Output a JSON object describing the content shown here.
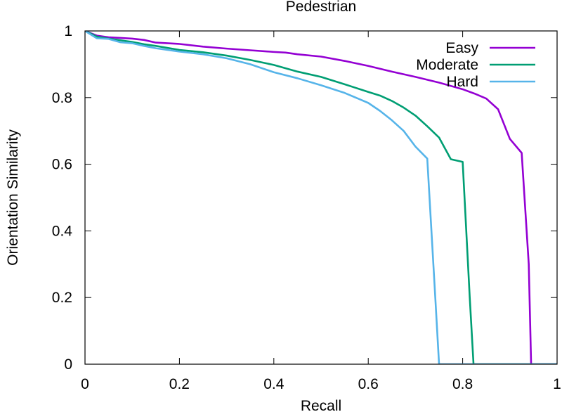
{
  "chart_data": {
    "type": "line",
    "title": "Pedestrian",
    "xlabel": "Recall",
    "ylabel": "Orientation Similarity",
    "xlim": [
      0,
      1
    ],
    "ylim": [
      0,
      1
    ],
    "grid": false,
    "legend_position": "top-right",
    "x_ticks": [
      {
        "value": 0,
        "label": "0"
      },
      {
        "value": 0.2,
        "label": "0.2"
      },
      {
        "value": 0.4,
        "label": "0.4"
      },
      {
        "value": 0.6,
        "label": "0.6"
      },
      {
        "value": 0.8,
        "label": "0.8"
      },
      {
        "value": 1,
        "label": "1"
      }
    ],
    "y_ticks": [
      {
        "value": 0,
        "label": "0"
      },
      {
        "value": 0.2,
        "label": "0.2"
      },
      {
        "value": 0.4,
        "label": "0.4"
      },
      {
        "value": 0.6,
        "label": "0.6"
      },
      {
        "value": 0.8,
        "label": "0.8"
      },
      {
        "value": 1,
        "label": "1"
      }
    ],
    "series": [
      {
        "name": "Easy",
        "color": "#9400d3",
        "x": [
          0,
          0.025,
          0.05,
          0.075,
          0.1,
          0.125,
          0.15,
          0.2,
          0.25,
          0.3,
          0.35,
          0.4,
          0.425,
          0.45,
          0.5,
          0.55,
          0.6,
          0.65,
          0.7,
          0.75,
          0.8,
          0.825,
          0.85,
          0.875,
          0.9,
          0.925,
          0.94,
          0.945,
          1.0
        ],
        "y": [
          1.0,
          0.986,
          0.981,
          0.979,
          0.977,
          0.973,
          0.965,
          0.961,
          0.953,
          0.947,
          0.942,
          0.937,
          0.935,
          0.93,
          0.923,
          0.91,
          0.895,
          0.878,
          0.862,
          0.845,
          0.825,
          0.812,
          0.797,
          0.765,
          0.676,
          0.634,
          0.3,
          0.0,
          0.0
        ]
      },
      {
        "name": "Moderate",
        "color": "#009e73",
        "x": [
          0,
          0.025,
          0.05,
          0.075,
          0.1,
          0.125,
          0.15,
          0.2,
          0.25,
          0.3,
          0.35,
          0.4,
          0.45,
          0.5,
          0.55,
          0.6,
          0.625,
          0.65,
          0.675,
          0.7,
          0.725,
          0.75,
          0.775,
          0.8,
          0.815,
          0.823,
          1.0
        ],
        "y": [
          1.0,
          0.983,
          0.977,
          0.972,
          0.967,
          0.96,
          0.955,
          0.943,
          0.936,
          0.926,
          0.913,
          0.898,
          0.878,
          0.862,
          0.84,
          0.817,
          0.806,
          0.79,
          0.77,
          0.746,
          0.714,
          0.68,
          0.615,
          0.607,
          0.2,
          0.0,
          0.0
        ]
      },
      {
        "name": "Hard",
        "color": "#56b4e9",
        "x": [
          0,
          0.025,
          0.05,
          0.075,
          0.1,
          0.125,
          0.15,
          0.2,
          0.25,
          0.3,
          0.35,
          0.4,
          0.45,
          0.5,
          0.55,
          0.6,
          0.625,
          0.65,
          0.675,
          0.7,
          0.725,
          0.742,
          0.75,
          1.0
        ],
        "y": [
          1.0,
          0.978,
          0.976,
          0.966,
          0.963,
          0.955,
          0.948,
          0.938,
          0.93,
          0.918,
          0.9,
          0.876,
          0.858,
          0.837,
          0.814,
          0.784,
          0.76,
          0.732,
          0.7,
          0.653,
          0.617,
          0.2,
          0.0,
          0.0
        ]
      }
    ]
  }
}
